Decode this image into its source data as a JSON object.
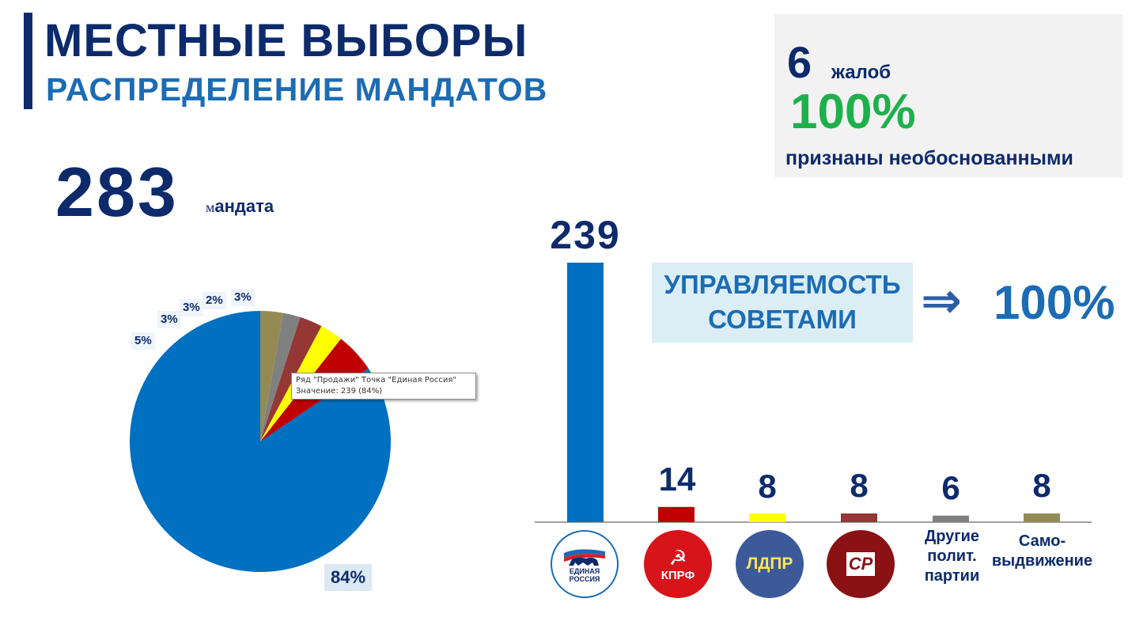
{
  "header": {
    "title": "МЕСТНЫЕ ВЫБОРЫ",
    "subtitle": "РАСПРЕДЕЛЕНИЕ МАНДАТОВ"
  },
  "total": {
    "value": "283",
    "label_first": "м",
    "label_rest": "андата"
  },
  "complaints": {
    "count": "6",
    "word": "жалоб",
    "percent": "100%",
    "caption": "признаны необоснованными"
  },
  "management": {
    "line1": "УПРАВЛЯЕМОСТЬ",
    "line2": "СОВЕТАМИ",
    "arrow": "⇒",
    "percent": "100%"
  },
  "tooltip": {
    "line1": "Ряд \"Продажи\" Точка \"Единая Россия\"",
    "line2": "Значение: 239 (84%)"
  },
  "logos": {
    "er_line1": "ЕДИНАЯ",
    "er_line2": "РОССИЯ",
    "kprf": "КПРФ",
    "ldpr": "ЛДПР",
    "sr": "СР",
    "other": "Другие полит. партии",
    "self": "Само-выдвижение"
  },
  "colors": {
    "navy": "#0d2b6b",
    "blue": "#1c6cb4",
    "green": "#1db04b"
  },
  "chart_data": [
    {
      "type": "pie",
      "data_labels": [
        "84%",
        "5%",
        "3%",
        "3%",
        "2%",
        "3%"
      ],
      "values": [
        239,
        14,
        8,
        8,
        6,
        8
      ],
      "percents": [
        84,
        5,
        3,
        3,
        2,
        3
      ],
      "colors": [
        "#0070c0",
        "#c00000",
        "#ffff00",
        "#953735",
        "#808080",
        "#948a54"
      ]
    },
    {
      "type": "bar",
      "values": [
        239,
        14,
        8,
        8,
        6,
        8
      ],
      "value_labels": [
        "239",
        "14",
        "8",
        "8",
        "6",
        "8"
      ],
      "colors": [
        "#0070c0",
        "#c00000",
        "#ffff00",
        "#953735",
        "#808080",
        "#948a54"
      ],
      "ylim": [
        0,
        239
      ]
    }
  ]
}
